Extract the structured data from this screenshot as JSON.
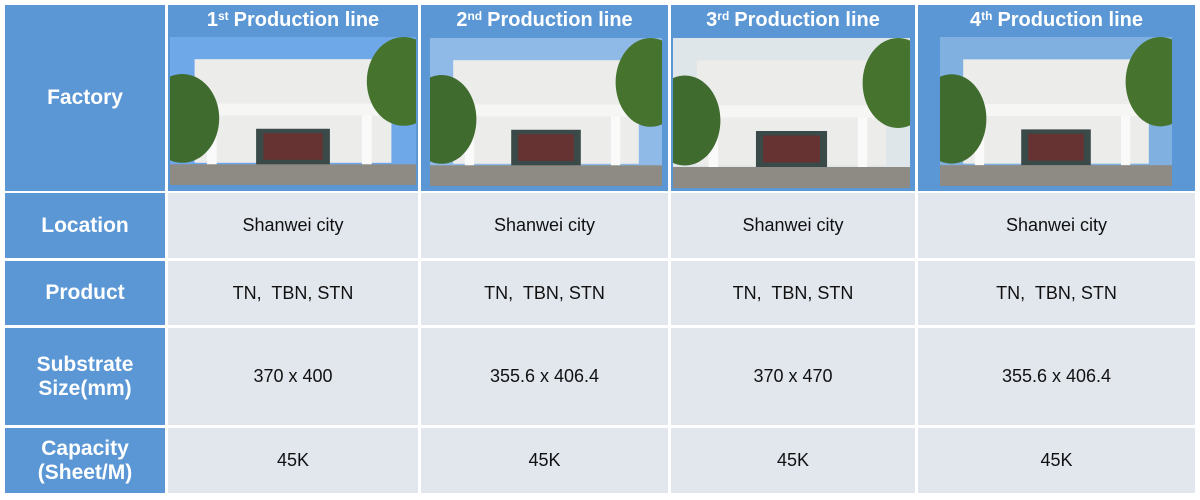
{
  "header": {
    "columns": [
      {
        "number": "1",
        "suffix": "st",
        "label": "Production line"
      },
      {
        "number": "2",
        "suffix": "nd",
        "label": "Production line"
      },
      {
        "number": "3",
        "suffix": "rd",
        "label": "Production line"
      },
      {
        "number": "4",
        "suffix": "th",
        "label": "Production line"
      }
    ]
  },
  "table": {
    "rows": [
      {
        "label": "Factory"
      },
      {
        "label": "Location",
        "cells": [
          "Shanwei city",
          "Shanwei city",
          "Shanwei city",
          "Shanwei city"
        ]
      },
      {
        "label": "Product",
        "cells": [
          "TN,  TBN, STN",
          "TN,  TBN, STN",
          "TN,  TBN, STN",
          "TN,  TBN, STN"
        ]
      },
      {
        "label": "Substrate Size(mm)",
        "cells": [
          "370 x 400",
          "355.6 x 406.4",
          "370 x 470",
          "355.6 x 406.4"
        ]
      },
      {
        "label": "Capacity (Sheet/M)",
        "cells": [
          "45K",
          "45K",
          "45K",
          "45K"
        ]
      }
    ]
  }
}
